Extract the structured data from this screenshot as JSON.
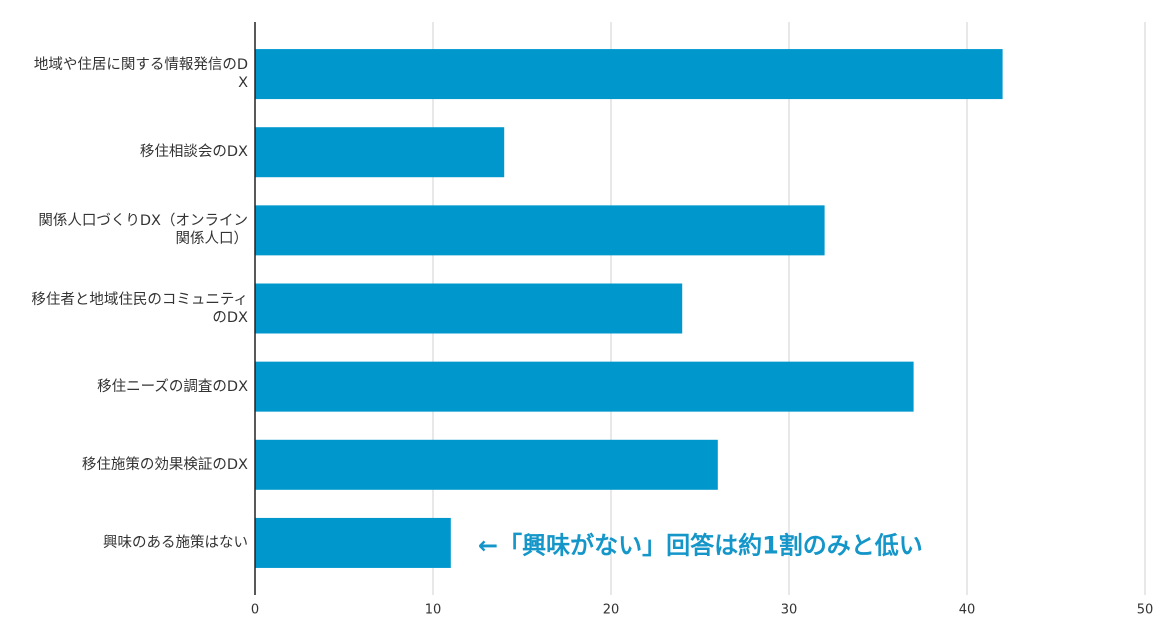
{
  "chart_data": {
    "type": "bar",
    "orientation": "horizontal",
    "categories": [
      "地域や住居に関する情報発信のDX",
      "移住相談会のDX",
      "関係人口づくりDX（オンライン関係人口）",
      "移住者と地域住民のコミュニティのDX",
      "移住ニーズの調査のDX",
      "移住施策の効果検証のDX",
      "興味のある施策はない"
    ],
    "values": [
      42,
      14,
      32,
      24,
      37,
      26,
      11
    ],
    "color": "#0097cc",
    "xlim": [
      0,
      50
    ],
    "xticks": [
      0,
      10,
      20,
      30,
      40,
      50
    ],
    "grid": true,
    "annotation": "←「興味がない」回答は約1割のみと低い"
  }
}
